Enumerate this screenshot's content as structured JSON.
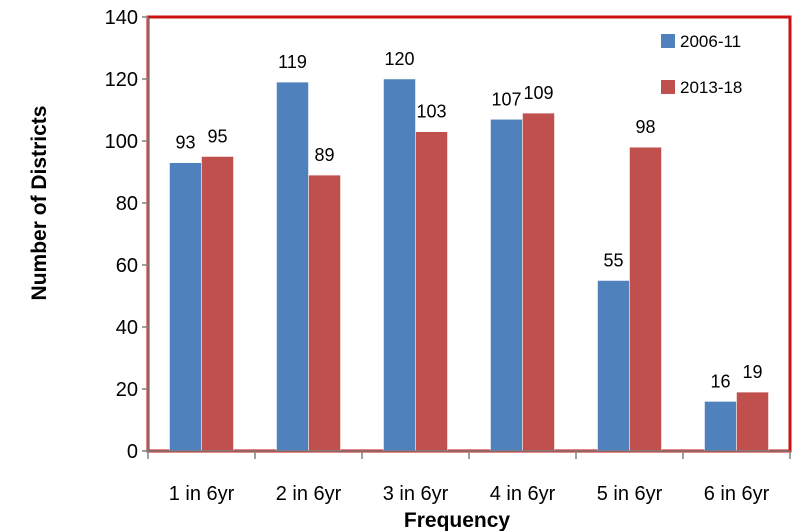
{
  "chart_data": {
    "type": "bar",
    "title": "",
    "xlabel": "Frequency",
    "ylabel": "Number of Districts",
    "ylim": [
      0,
      140
    ],
    "yticks": [
      0,
      20,
      40,
      60,
      80,
      100,
      120,
      140
    ],
    "categories": [
      "1 in 6yr",
      "2 in 6yr",
      "3 in 6yr",
      "4 in 6yr",
      "5 in 6yr",
      "6 in 6yr"
    ],
    "series": [
      {
        "name": "2006-11",
        "color": "#4f81bd",
        "values": [
          93,
          119,
          120,
          107,
          55,
          16
        ]
      },
      {
        "name": "2013-18",
        "color": "#c0504d",
        "values": [
          95,
          89,
          103,
          109,
          98,
          19
        ]
      }
    ],
    "grid": false,
    "legend_position": "top-right",
    "frame_color": "#cc1111"
  }
}
